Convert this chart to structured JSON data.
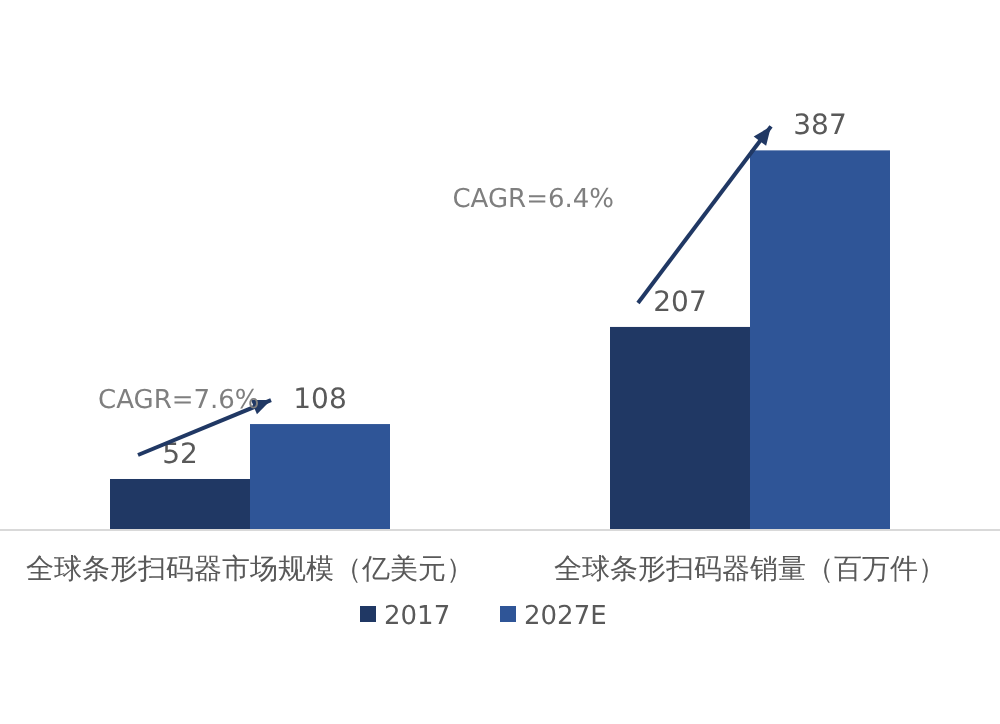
{
  "chart_data": {
    "type": "bar",
    "categories": [
      "全球条形扫码器市场规模（亿美元）",
      "全球条形扫码器销量（百万件）"
    ],
    "series": [
      {
        "name": "2017",
        "color": "#203864",
        "values": [
          52,
          207
        ]
      },
      {
        "name": "2027E",
        "color": "#2f5597",
        "values": [
          108,
          387
        ]
      }
    ],
    "data_labels": true,
    "legend": "bottom",
    "annotations": [
      "CAGR=7.6%",
      "CAGR=6.4%"
    ]
  }
}
